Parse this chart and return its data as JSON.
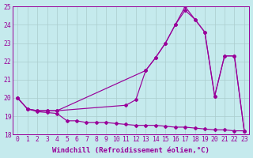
{
  "xlabel": "Windchill (Refroidissement éolien,°C)",
  "bg_color": "#c5eaed",
  "line_color": "#990099",
  "grid_color": "#aacccc",
  "xlim": [
    -0.5,
    23.5
  ],
  "ylim": [
    18.0,
    25.0
  ],
  "yticks": [
    18,
    19,
    20,
    21,
    22,
    23,
    24,
    25
  ],
  "xticks": [
    0,
    1,
    2,
    3,
    4,
    5,
    6,
    7,
    8,
    9,
    10,
    11,
    12,
    13,
    14,
    15,
    16,
    17,
    18,
    19,
    20,
    21,
    22,
    23
  ],
  "curve1_x": [
    0,
    1,
    2,
    3,
    4,
    13,
    14,
    15,
    16,
    17,
    18,
    19,
    20,
    21,
    22,
    23
  ],
  "curve1_y": [
    20.0,
    19.4,
    19.3,
    19.3,
    19.3,
    21.5,
    22.2,
    23.0,
    24.0,
    25.0,
    24.3,
    23.6,
    20.1,
    22.3,
    22.3,
    18.2
  ],
  "curve2_x": [
    0,
    1,
    2,
    3,
    4,
    11,
    12,
    13,
    14,
    15,
    16,
    17,
    18,
    19,
    20,
    21,
    22,
    23
  ],
  "curve2_y": [
    20.0,
    19.4,
    19.3,
    19.3,
    19.3,
    19.6,
    19.9,
    21.5,
    22.2,
    23.0,
    24.0,
    24.8,
    24.3,
    23.6,
    20.1,
    22.3,
    22.3,
    18.2
  ],
  "curve3_x": [
    0,
    1,
    2,
    3,
    4,
    5,
    6,
    7,
    8,
    9,
    10,
    11,
    12,
    13,
    14,
    15,
    16,
    17,
    18,
    19,
    20,
    21,
    22,
    23
  ],
  "curve3_y": [
    20.0,
    19.4,
    19.25,
    19.2,
    19.15,
    18.75,
    18.75,
    18.65,
    18.65,
    18.65,
    18.6,
    18.55,
    18.5,
    18.5,
    18.5,
    18.45,
    18.4,
    18.4,
    18.35,
    18.3,
    18.25,
    18.25,
    18.2,
    18.2
  ]
}
